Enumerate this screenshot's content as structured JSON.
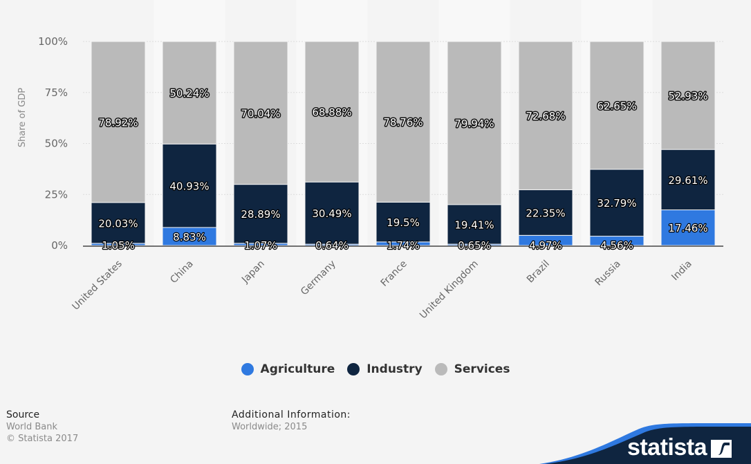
{
  "chart_data": {
    "type": "bar",
    "stacked": true,
    "title": "",
    "xlabel": "",
    "ylabel": "Share of GDP",
    "ylim": [
      0,
      100
    ],
    "y_ticks": [
      "0%",
      "25%",
      "50%",
      "75%",
      "100%"
    ],
    "y_tick_values": [
      0,
      25,
      50,
      75,
      100
    ],
    "grid": true,
    "legend_position": "bottom-center",
    "categories": [
      "United States",
      "China",
      "Japan",
      "Germany",
      "France",
      "United Kingdom",
      "Brazil",
      "Russia",
      "India"
    ],
    "series": [
      {
        "name": "Agriculture",
        "color": "#2f79e0",
        "values": [
          1.05,
          8.83,
          1.07,
          0.64,
          1.74,
          0.65,
          4.97,
          4.56,
          17.46
        ]
      },
      {
        "name": "Industry",
        "color": "#0f2540",
        "values": [
          20.03,
          40.93,
          28.89,
          30.49,
          19.5,
          19.41,
          22.35,
          32.79,
          29.61
        ]
      },
      {
        "name": "Services",
        "color": "#bababa",
        "values": [
          78.92,
          50.24,
          70.04,
          68.88,
          78.76,
          79.94,
          72.68,
          62.65,
          52.93
        ]
      }
    ],
    "data_labels": {
      "Agriculture": [
        "1.05%",
        "8.83%",
        "1.07%",
        "0.64%",
        "1.74%",
        "0.65%",
        "4.97%",
        "4.56%",
        "17.46%"
      ],
      "Industry": [
        "20.03%",
        "40.93%",
        "28.89%",
        "30.49%",
        "19.5%",
        "19.41%",
        "22.35%",
        "32.79%",
        "29.61%"
      ],
      "Services": [
        "78.92%",
        "50.24%",
        "70.04%",
        "68.88%",
        "78.76%",
        "79.94%",
        "72.68%",
        "62.65%",
        "52.93%"
      ]
    }
  },
  "legend": {
    "items": [
      {
        "label": "Agriculture",
        "color": "#2f79e0"
      },
      {
        "label": "Industry",
        "color": "#0f2540"
      },
      {
        "label": "Services",
        "color": "#bababa"
      }
    ]
  },
  "footer": {
    "source_title": "Source",
    "source_lines": [
      "World Bank",
      "© Statista 2017"
    ],
    "info_title": "Additional Information:",
    "info_lines": [
      "Worldwide; 2015"
    ]
  },
  "brand": {
    "logo_text": "statista",
    "dark_color": "#0f2540",
    "accent_color": "#2f79e0"
  }
}
